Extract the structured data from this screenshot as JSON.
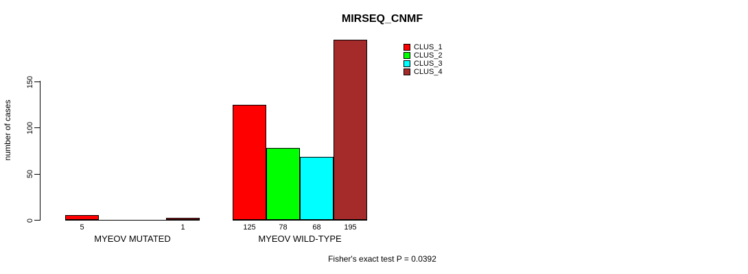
{
  "chart_data": {
    "type": "bar",
    "title": "MIRSEQ_CNMF",
    "ylabel": "number of cases",
    "ylim": [
      0,
      150
    ],
    "yticks": [
      0,
      50,
      100,
      150
    ],
    "grid": false,
    "categories": [
      "MYEOV MUTATED",
      "MYEOV WILD-TYPE"
    ],
    "series": [
      {
        "name": "CLUS_1",
        "color": "#ff0000",
        "values": [
          5,
          125
        ]
      },
      {
        "name": "CLUS_2",
        "color": "#00ff00",
        "values": [
          0,
          78
        ]
      },
      {
        "name": "CLUS_3",
        "color": "#00ffff",
        "values": [
          0,
          68
        ]
      },
      {
        "name": "CLUS_4",
        "color": "#a52a2a",
        "values": [
          1,
          195
        ]
      }
    ],
    "legend_position": "top-right",
    "annotation": "Fisher's exact test P = 0.0392"
  },
  "colors": {
    "background": "#ffffff",
    "text": "#000000",
    "axis": "#000000",
    "bar_border": "#000000"
  }
}
